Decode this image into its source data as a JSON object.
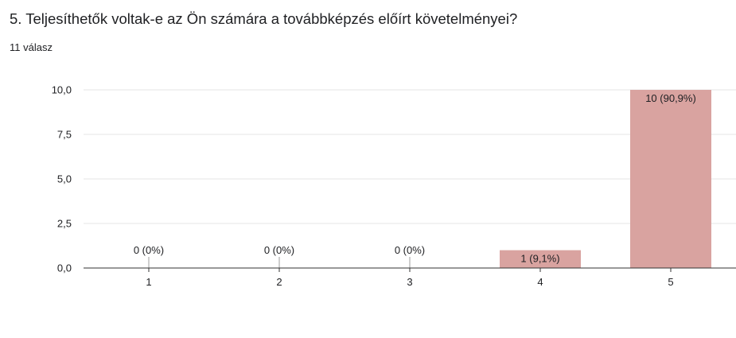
{
  "question": {
    "title": "5. Teljesíthetők voltak-e az Ön számára a továbbképzés előírt követelményei?",
    "response_count": "11 válasz"
  },
  "colors": {
    "bar": "#d9a3a0",
    "grid": "#e6e6e6",
    "axis": "#333333",
    "text": "#202124",
    "label": "#202124"
  },
  "chart_data": {
    "type": "bar",
    "categories": [
      "1",
      "2",
      "3",
      "4",
      "5"
    ],
    "values": [
      0,
      0,
      0,
      1,
      10
    ],
    "data_labels": [
      "0 (0%)",
      "0 (0%)",
      "0 (0%)",
      "1 (9,1%)",
      "10 (90,9%)"
    ],
    "y_ticks": [
      "0,0",
      "2,5",
      "5,0",
      "7,5",
      "10,0"
    ],
    "y_tick_values": [
      0,
      2.5,
      5,
      7.5,
      10
    ],
    "ylim": [
      0,
      10
    ],
    "grid": true,
    "legend": "none"
  }
}
